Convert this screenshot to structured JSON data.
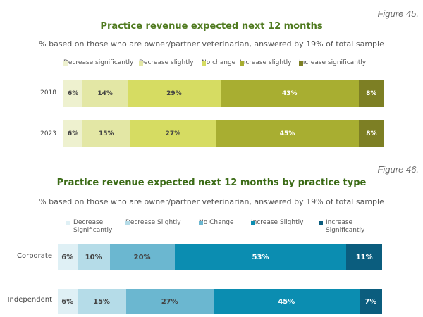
{
  "chart_data": [
    {
      "type": "bar",
      "orientation": "horizontal",
      "stacked": true,
      "figure_label": "Figure 45.",
      "title": "Practice revenue expected next 12 months",
      "subtitle": "% based on those who are owner/partner veterinarian, answered by 19% of total sample",
      "legend_placement": "top",
      "categories": [
        "2018",
        "2023"
      ],
      "series": [
        {
          "name": "Decrease significantly",
          "values": [
            6,
            6
          ],
          "color": "#eef1cf",
          "text_color": "#444444"
        },
        {
          "name": "Decrease slightly",
          "values": [
            14,
            15
          ],
          "color": "#e3e7a5",
          "text_color": "#444444"
        },
        {
          "name": "No change",
          "values": [
            29,
            27
          ],
          "color": "#d6dc62",
          "text_color": "#444444"
        },
        {
          "name": "Increase slightly",
          "values": [
            43,
            45
          ],
          "color": "#a8ae31",
          "text_color": "#ffffff"
        },
        {
          "name": "Increase significantly",
          "values": [
            8,
            8
          ],
          "color": "#7d7f24",
          "text_color": "#ffffff"
        }
      ],
      "value_suffix": "%"
    },
    {
      "type": "bar",
      "orientation": "horizontal",
      "stacked": true,
      "figure_label": "Figure 46.",
      "title": "Practice revenue expected next 12 months by practice type",
      "subtitle": "% based on those who are owner/partner veterinarian, answered by 19% of total sample",
      "legend_placement": "top",
      "categories": [
        "Corporate",
        "Independent"
      ],
      "series": [
        {
          "name": "Decrease Significantly",
          "values": [
            6,
            6
          ],
          "color": "#dff0f5",
          "text_color": "#444444"
        },
        {
          "name": "Decrease Slightly",
          "values": [
            10,
            15
          ],
          "color": "#b5dce8",
          "text_color": "#444444"
        },
        {
          "name": "No Change",
          "values": [
            20,
            27
          ],
          "color": "#6bb7d0",
          "text_color": "#444444"
        },
        {
          "name": "Increase Slightly",
          "values": [
            53,
            45
          ],
          "color": "#0b8db1",
          "text_color": "#ffffff"
        },
        {
          "name": "Increase Significantly",
          "values": [
            11,
            7
          ],
          "color": "#0b5d7e",
          "text_color": "#ffffff"
        }
      ],
      "value_suffix": "%"
    }
  ]
}
